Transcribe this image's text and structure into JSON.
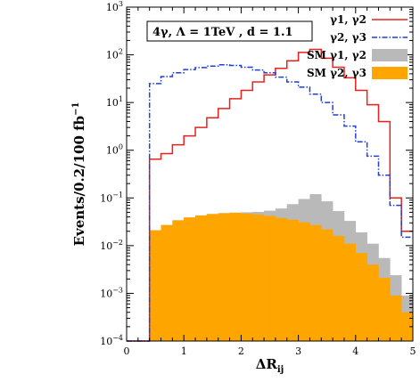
{
  "chart_data": {
    "type": "histogram",
    "log_y": true,
    "title": "",
    "annotation": "4γ, Λ = 1TeV , d = 1.1",
    "xlabel": "ΔR_ij",
    "ylabel": "Events/0.2/100 fb",
    "ylabel_sup": "−1",
    "xlim": [
      0,
      5
    ],
    "ylim": [
      0.0001,
      1000
    ],
    "x_ticks": [
      0,
      1,
      2,
      3,
      4,
      5
    ],
    "x_tick_labels": [
      "0",
      "1",
      "2",
      "3",
      "4",
      "5"
    ],
    "y_ticks": [
      0.0001,
      0.001,
      0.01,
      0.1,
      1,
      10,
      100,
      1000
    ],
    "y_tick_labels": [
      {
        "base": "10",
        "exp": "−4"
      },
      {
        "base": "10",
        "exp": "−3"
      },
      {
        "base": "10",
        "exp": "−2"
      },
      {
        "base": "10",
        "exp": "−1"
      },
      {
        "base": "10",
        "exp": "0"
      },
      {
        "base": "10",
        "exp": "1"
      },
      {
        "base": "10",
        "exp": "2"
      },
      {
        "base": "10",
        "exp": "3"
      }
    ],
    "bin_edges": [
      0.4,
      0.6,
      0.8,
      1.0,
      1.2,
      1.4,
      1.6,
      1.8,
      2.0,
      2.2,
      2.4,
      2.6,
      2.8,
      3.0,
      3.2,
      3.4,
      3.6,
      3.8,
      4.0,
      4.2,
      4.4,
      4.6,
      4.8,
      5.0
    ],
    "legend_position": "top-right",
    "series": [
      {
        "name": "γ1, γ2",
        "style": "step-line",
        "color": "#e8211d",
        "dash": "solid",
        "start_drop": 0.0001,
        "values": [
          0.65,
          0.85,
          1.3,
          2.0,
          3.0,
          4.8,
          7.5,
          12,
          18,
          27,
          38,
          52,
          75,
          112,
          130,
          85,
          55,
          33,
          18,
          9,
          4.0,
          0.1,
          0.02
        ]
      },
      {
        "name": "γ2, γ3",
        "style": "step-line",
        "color": "#1f3fd6",
        "dash": "dashdot",
        "start_drop": 0.0001,
        "values": [
          25,
          35,
          42,
          49,
          54,
          58,
          62,
          60,
          55,
          48,
          42,
          34,
          27,
          21,
          15,
          10,
          5.5,
          3.2,
          1.5,
          0.75,
          0.3,
          0.07,
          0.015
        ]
      },
      {
        "name": "SM γ1, γ2",
        "style": "filled-step",
        "color": "#b9b9b9",
        "values": [
          0.021,
          0.027,
          0.034,
          0.039,
          0.043,
          0.046,
          0.048,
          0.049,
          0.05,
          0.051,
          0.054,
          0.06,
          0.074,
          0.095,
          0.12,
          0.085,
          0.053,
          0.033,
          0.019,
          0.011,
          0.0055,
          0.0024,
          0.0009
        ]
      },
      {
        "name": "SM γ2, γ3",
        "style": "filled-step",
        "color": "#ffa500",
        "values": [
          0.021,
          0.027,
          0.034,
          0.039,
          0.043,
          0.046,
          0.048,
          0.049,
          0.047,
          0.045,
          0.042,
          0.038,
          0.035,
          0.031,
          0.027,
          0.022,
          0.016,
          0.011,
          0.007,
          0.004,
          0.0021,
          0.0009,
          0.0004
        ]
      }
    ]
  }
}
